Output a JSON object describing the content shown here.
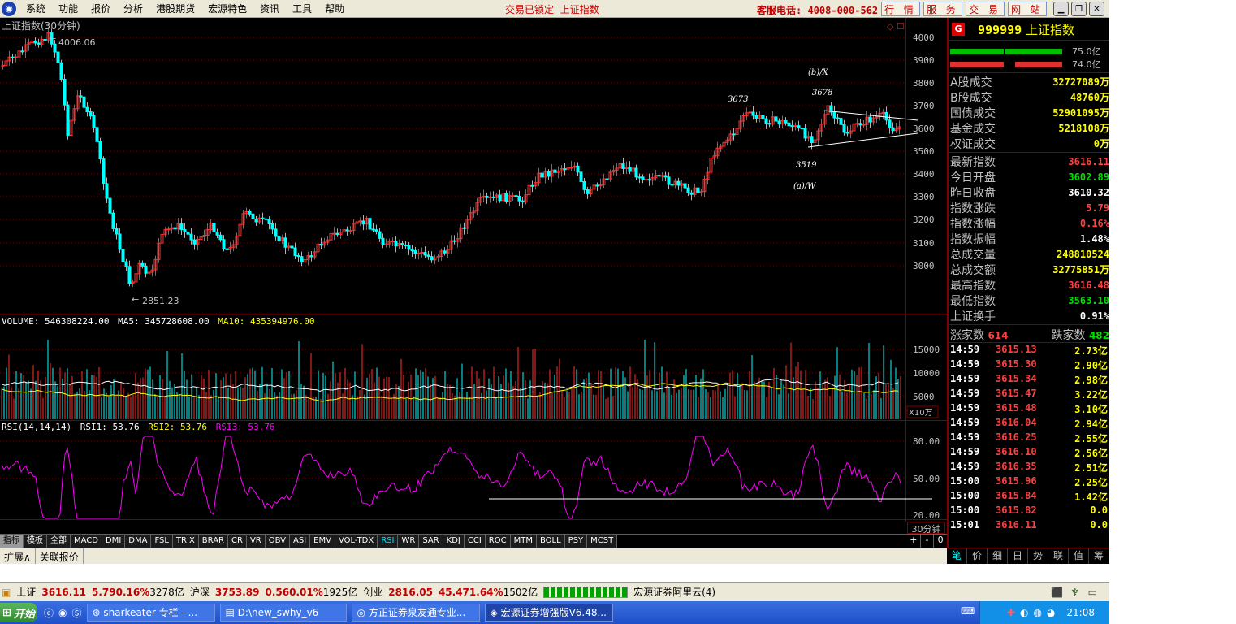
{
  "menubar": {
    "items": [
      "系统",
      "功能",
      "报价",
      "分析",
      "港股期货",
      "宏源特色",
      "资讯",
      "工具",
      "帮助"
    ],
    "center_text": "交易已锁定  上证指数",
    "phone": "客服电话: 4008-000-562",
    "quick_buttons": [
      "行 情",
      "服 务",
      "交 易",
      "网 站"
    ]
  },
  "chart": {
    "title": "上证指数(30分钟)",
    "price_labels": [
      "4000",
      "3900",
      "3800",
      "3700",
      "3600",
      "3500",
      "3400",
      "3300",
      "3200",
      "3100",
      "3000"
    ],
    "high_label": "4006.06",
    "low_label": "2851.23",
    "wave_labels": [
      "3673",
      "(b)/X",
      "3678",
      "3519",
      "(a)/W"
    ],
    "volume_header": {
      "volume": "VOLUME: 546308224.00",
      "ma5": "MA5: 345728608.00",
      "ma10": "MA10: 435394976.00"
    },
    "volume_labels": [
      "15000",
      "10000",
      "5000"
    ],
    "volume_unit": "X10万",
    "rsi_header": {
      "rsi": "RSI(14,14,14)",
      "rsi1": "RSI1: 53.76",
      "rsi2": "RSI2: 53.76",
      "rsi3": "RSI3: 53.76"
    },
    "rsi_labels": [
      "80.00",
      "50.00",
      "20.00"
    ],
    "time_labels": [
      "08月12日",
      "13:30",
      "14:00",
      "14:00",
      "14:00",
      "14:00",
      "14:30",
      "14:30",
      "14:30",
      "15:00",
      "10:00",
      "10:00",
      "10:00",
      "10:30",
      "10:30",
      "10:30",
      "10:30",
      "10:30"
    ],
    "period": "30分钟"
  },
  "indicator_tabs": [
    "指标",
    "模板",
    "全部",
    "MACD",
    "DMI",
    "DMA",
    "FSL",
    "TRIX",
    "BRAR",
    "CR",
    "VR",
    "OBV",
    "ASI",
    "EMV",
    "VOL-TDX",
    "RSI",
    "WR",
    "SAR",
    "KDJ",
    "CCI",
    "ROC",
    "MTM",
    "BOLL",
    "PSY",
    "MCST"
  ],
  "zoom_buttons": [
    "+",
    "-",
    "0"
  ],
  "bottom_tabs": [
    "扩展∧",
    "关联报价"
  ],
  "right_panel": {
    "badge": "G",
    "code": "999999",
    "name": "上证指数",
    "bar_top_value": "75.0亿",
    "bar_bottom_value": "74.0亿",
    "volumes": [
      {
        "label": "A股成交",
        "value": "32727089万"
      },
      {
        "label": "B股成交",
        "value": "48760万"
      },
      {
        "label": "国债成交",
        "value": "52901095万"
      },
      {
        "label": "基金成交",
        "value": "5218108万"
      },
      {
        "label": "权证成交",
        "value": "0万"
      }
    ],
    "stats": [
      {
        "label": "最新指数",
        "value": "3616.11",
        "color": "red"
      },
      {
        "label": "今日开盘",
        "value": "3602.89",
        "color": "grn"
      },
      {
        "label": "昨日收盘",
        "value": "3610.32",
        "color": "wht"
      },
      {
        "label": "指数涨跌",
        "value": "5.79",
        "color": "red"
      },
      {
        "label": "指数涨幅",
        "value": "0.16%",
        "color": "red"
      },
      {
        "label": "指数振幅",
        "value": "1.48%",
        "color": "wht"
      },
      {
        "label": "总成交量",
        "value": "248810524",
        "color": "yel"
      },
      {
        "label": "总成交额",
        "value": "32775851万",
        "color": "yel"
      },
      {
        "label": "最高指数",
        "value": "3616.48",
        "color": "red"
      },
      {
        "label": "最低指数",
        "value": "3563.10",
        "color": "grn"
      },
      {
        "label": "上证换手",
        "value": "0.91%",
        "color": "wht"
      }
    ],
    "up_label": "涨家数",
    "up_count": "614",
    "down_label": "跌家数",
    "down_count": "482",
    "ticks": [
      {
        "time": "14:59",
        "price": "3615.13",
        "amount": "2.73亿"
      },
      {
        "time": "14:59",
        "price": "3615.30",
        "amount": "2.90亿"
      },
      {
        "time": "14:59",
        "price": "3615.34",
        "amount": "2.98亿"
      },
      {
        "time": "14:59",
        "price": "3615.47",
        "amount": "3.22亿"
      },
      {
        "time": "14:59",
        "price": "3615.48",
        "amount": "3.10亿"
      },
      {
        "time": "14:59",
        "price": "3616.04",
        "amount": "2.94亿"
      },
      {
        "time": "14:59",
        "price": "3616.25",
        "amount": "2.55亿"
      },
      {
        "time": "14:59",
        "price": "3616.10",
        "amount": "2.56亿"
      },
      {
        "time": "14:59",
        "price": "3616.35",
        "amount": "2.51亿"
      },
      {
        "time": "15:00",
        "price": "3615.96",
        "amount": "2.25亿"
      },
      {
        "time": "15:00",
        "price": "3615.84",
        "amount": "1.42亿"
      },
      {
        "time": "15:00",
        "price": "3615.82",
        "amount": "0.0"
      },
      {
        "time": "15:01",
        "price": "3616.11",
        "amount": "0.0"
      }
    ],
    "tabs": [
      "笔",
      "价",
      "细",
      "日",
      "势",
      "联",
      "值",
      "筹"
    ]
  },
  "ticker": {
    "sh_label": "上证",
    "sh_value": "3616.11",
    "sh_change": "5.79",
    "sh_pct": "0.16%",
    "sh_amount": "3278亿",
    "hs_label": "沪深",
    "hs_value": "3753.89",
    "hs_change": "0.56",
    "hs_pct": "0.01%",
    "hs_amount": "1925亿",
    "cy_label": "创业",
    "cy_value": "2816.05",
    "cy_change": "45.47",
    "cy_pct": "1.64%",
    "cy_amount": "1502亿",
    "server": "宏源证券阿里云(4)"
  },
  "taskbar": {
    "start": "开始",
    "tasks": [
      "sharkeater 专栏 - ...",
      "D:\\new_swhy_v6",
      "方正证券泉友通专业...",
      "宏源证券增强版V6.48..."
    ],
    "clock": "21:08"
  }
}
